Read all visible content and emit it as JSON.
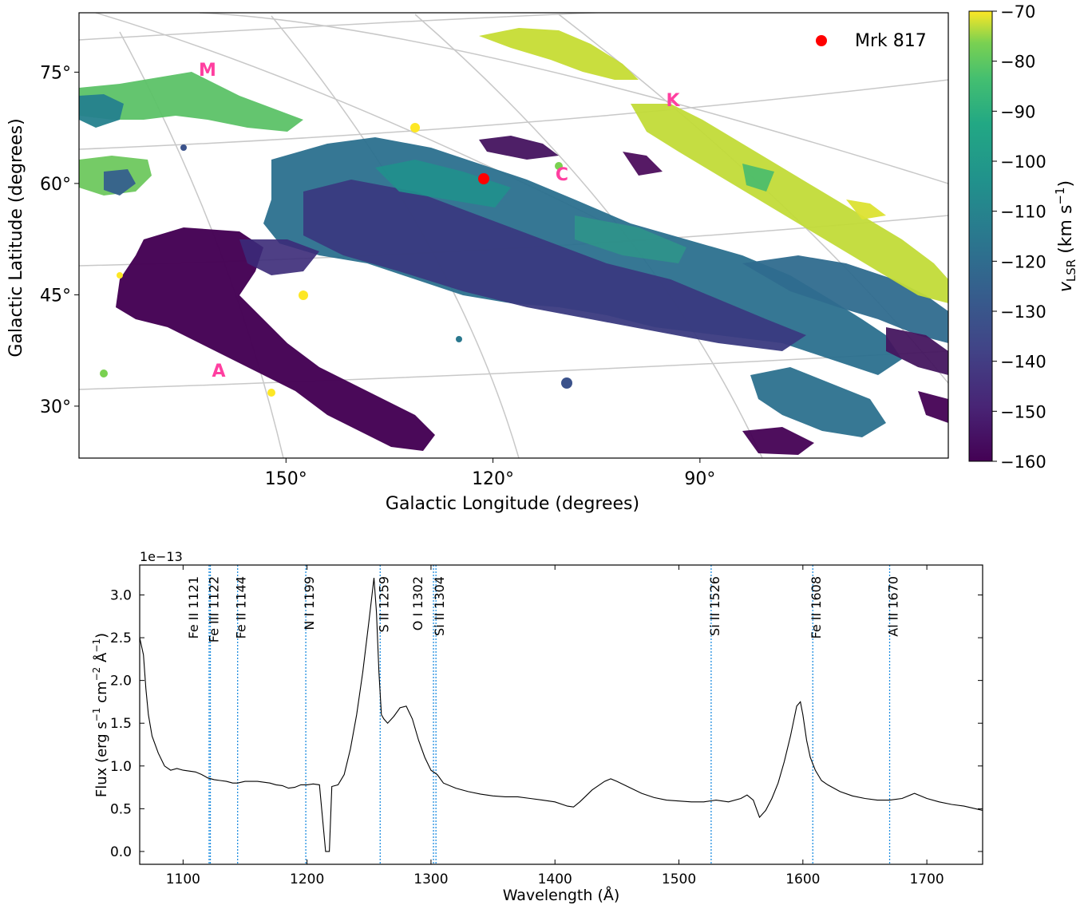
{
  "chart_data": [
    {
      "type": "heatmap",
      "xlabel": "Galactic Longitude (degrees)",
      "ylabel": "Galactic Latitude (degrees)",
      "xlim": [
        180,
        54
      ],
      "ylim": [
        23,
        83
      ],
      "x_ticks": [
        150,
        120,
        90
      ],
      "x_tick_labels": [
        "150°",
        "120°",
        "90°"
      ],
      "y_ticks": [
        30,
        45,
        60,
        75
      ],
      "y_tick_labels": [
        "30°",
        "45°",
        "60°",
        "75°"
      ],
      "grid": true,
      "colorbar": {
        "label": "v_LSR (km s^-1)",
        "label_main": "v",
        "label_sub": "LSR",
        "label_units": " (km s",
        "label_sup": "−1",
        "label_close": ")",
        "min": -160,
        "max": -70,
        "ticks": [
          -70,
          -80,
          -90,
          -100,
          -110,
          -120,
          -130,
          -140,
          -150,
          -160
        ],
        "tick_labels": [
          "−70",
          "−80",
          "−90",
          "−100",
          "−110",
          "−120",
          "−130",
          "−140",
          "−150",
          "−160"
        ],
        "colormap": "viridis"
      },
      "regions": [
        {
          "label": "M",
          "l": 160,
          "b": 70,
          "velocity": -95
        },
        {
          "label": "K",
          "l": 102,
          "b": 66,
          "velocity": -78
        },
        {
          "label": "C",
          "l": 116,
          "b": 57,
          "velocity": -120
        },
        {
          "label": "A",
          "l": 158,
          "b": 32,
          "velocity": -160
        }
      ],
      "legend": {
        "label": "Mrk 817",
        "marker": "red-dot",
        "placement": "top-right"
      },
      "marker": {
        "name": "Mrk 817",
        "l": 126,
        "b": 57
      },
      "colors": {
        "marker": "#ff0000",
        "region_labels": "#ff3fa0"
      }
    },
    {
      "type": "line",
      "xlabel": "Wavelength (Å)",
      "ylabel_main": "Flux (erg s",
      "ylabel_sup1": "−1",
      "ylabel_mid": " cm",
      "ylabel_sup2": "−2",
      "ylabel_mid2": " Å",
      "ylabel_sup3": "−1",
      "ylabel_close": ")",
      "y_offset_label": "1e−13",
      "xlim": [
        1065,
        1745
      ],
      "ylim": [
        -0.15,
        3.35
      ],
      "x_ticks": [
        1100,
        1200,
        1300,
        1400,
        1500,
        1600,
        1700
      ],
      "x_tick_labels": [
        "1100",
        "1200",
        "1300",
        "1400",
        "1500",
        "1600",
        "1700"
      ],
      "y_ticks": [
        0.0,
        0.5,
        1.0,
        1.5,
        2.0,
        2.5,
        3.0
      ],
      "y_tick_labels": [
        "0.0",
        "0.5",
        "1.0",
        "1.5",
        "2.0",
        "2.5",
        "3.0"
      ],
      "series": [
        {
          "color": "#000000",
          "x": [
            1065,
            1068,
            1070,
            1072,
            1075,
            1080,
            1085,
            1090,
            1095,
            1100,
            1110,
            1115,
            1120,
            1125,
            1130,
            1135,
            1140,
            1144,
            1150,
            1160,
            1170,
            1175,
            1180,
            1185,
            1190,
            1195,
            1200,
            1205,
            1210,
            1215,
            1218,
            1220,
            1225,
            1230,
            1235,
            1240,
            1245,
            1250,
            1252,
            1254,
            1256,
            1258,
            1260,
            1262,
            1265,
            1270,
            1275,
            1280,
            1285,
            1290,
            1295,
            1300,
            1305,
            1310,
            1320,
            1330,
            1340,
            1350,
            1360,
            1370,
            1380,
            1390,
            1400,
            1410,
            1415,
            1420,
            1425,
            1430,
            1440,
            1445,
            1450,
            1460,
            1470,
            1480,
            1490,
            1500,
            1510,
            1520,
            1530,
            1540,
            1550,
            1555,
            1560,
            1565,
            1570,
            1575,
            1580,
            1585,
            1590,
            1595,
            1598,
            1600,
            1603,
            1606,
            1610,
            1615,
            1620,
            1630,
            1640,
            1650,
            1660,
            1670,
            1680,
            1690,
            1700,
            1710,
            1720,
            1730,
            1745
          ],
          "y": [
            2.5,
            2.3,
            1.9,
            1.6,
            1.35,
            1.15,
            1.0,
            0.95,
            0.97,
            0.95,
            0.93,
            0.9,
            0.86,
            0.84,
            0.83,
            0.82,
            0.8,
            0.8,
            0.82,
            0.82,
            0.8,
            0.78,
            0.77,
            0.74,
            0.75,
            0.78,
            0.78,
            0.79,
            0.78,
            0.0,
            0.0,
            0.76,
            0.78,
            0.9,
            1.2,
            1.6,
            2.1,
            2.7,
            2.95,
            3.2,
            2.8,
            2.1,
            1.6,
            1.55,
            1.5,
            1.58,
            1.68,
            1.7,
            1.55,
            1.3,
            1.1,
            0.95,
            0.9,
            0.8,
            0.74,
            0.7,
            0.67,
            0.65,
            0.64,
            0.64,
            0.62,
            0.6,
            0.58,
            0.53,
            0.52,
            0.58,
            0.65,
            0.72,
            0.82,
            0.85,
            0.82,
            0.75,
            0.68,
            0.63,
            0.6,
            0.59,
            0.58,
            0.58,
            0.6,
            0.58,
            0.62,
            0.66,
            0.6,
            0.4,
            0.48,
            0.62,
            0.8,
            1.05,
            1.35,
            1.7,
            1.75,
            1.6,
            1.3,
            1.1,
            0.95,
            0.83,
            0.78,
            0.7,
            0.65,
            0.62,
            0.6,
            0.6,
            0.62,
            0.68,
            0.62,
            0.58,
            0.55,
            0.53,
            0.48
          ]
        }
      ],
      "absorption_features": [
        {
          "label": "Fe II 1121",
          "wavelength": 1121
        },
        {
          "label": "Fe III 1122",
          "wavelength": 1122
        },
        {
          "label": "Fe II 1144",
          "wavelength": 1144
        },
        {
          "label": "N I 1199",
          "wavelength": 1199
        },
        {
          "label": "S II 1259",
          "wavelength": 1259
        },
        {
          "label": "O I 1302",
          "wavelength": 1302
        },
        {
          "label": "Si II 1304",
          "wavelength": 1304
        },
        {
          "label": "Si II 1526",
          "wavelength": 1526
        },
        {
          "label": "Fe II 1608",
          "wavelength": 1608
        },
        {
          "label": "Al II 1670",
          "wavelength": 1670
        }
      ],
      "colors": {
        "feature_lines": "#1f8ee0",
        "spectrum": "#000000"
      }
    }
  ]
}
